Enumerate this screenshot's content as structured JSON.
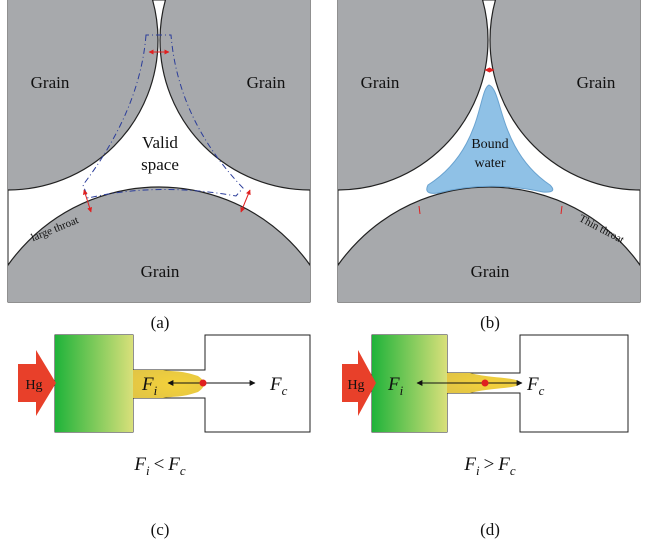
{
  "panels": {
    "a": {
      "grains": [
        "Grain",
        "Grain",
        "Grain"
      ],
      "region": [
        "Valid",
        "space"
      ],
      "throat": "large throat",
      "caption": "(a)"
    },
    "b": {
      "grains": [
        "Grain",
        "Grain",
        "Grain"
      ],
      "region": [
        "Bound",
        "water"
      ],
      "throat": "Thin throat",
      "caption": "(b)"
    },
    "c": {
      "fluid": "Hg",
      "left_force": {
        "base": "F",
        "sub": "i"
      },
      "right_force": {
        "base": "F",
        "sub": "c"
      },
      "condition": {
        "left": {
          "base": "F",
          "sub": "i"
        },
        "op": "<",
        "right": {
          "base": "F",
          "sub": "c"
        }
      },
      "caption": "(c)"
    },
    "d": {
      "fluid": "Hg",
      "left_force": {
        "base": "F",
        "sub": "i"
      },
      "right_force": {
        "base": "F",
        "sub": "c"
      },
      "condition": {
        "left": {
          "base": "F",
          "sub": "i"
        },
        "op": ">",
        "right": {
          "base": "F",
          "sub": "c"
        }
      },
      "caption": "(d)"
    }
  }
}
